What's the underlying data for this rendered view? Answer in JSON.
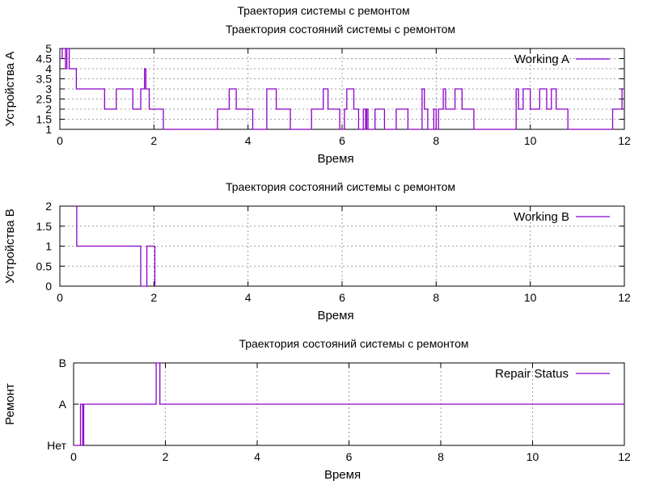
{
  "figure_title": "Траектория системы с ремонтом",
  "colors": {
    "series": "#8b00c9",
    "grid": "#a0a0a0",
    "axis": "#000000"
  },
  "chart_data": [
    {
      "type": "line",
      "title": "Траектория состояний системы с ремонтом",
      "xlabel": "Время",
      "ylabel": "Устройства А",
      "xlim": [
        0,
        12
      ],
      "ylim": [
        1,
        5
      ],
      "xticks": [
        0,
        2,
        4,
        6,
        8,
        10,
        12
      ],
      "xtick_labels": [
        "0",
        "2",
        "4",
        "6",
        "8",
        "10",
        "12"
      ],
      "yticks": [
        1,
        1.5,
        2,
        2.5,
        3,
        3.5,
        4,
        4.5,
        5
      ],
      "ytick_labels": [
        "1",
        "1.5",
        "2",
        "2.5",
        "3",
        "3.5",
        "4",
        "4.5",
        "5"
      ],
      "grid": true,
      "legend_position": "top-right",
      "series": [
        {
          "name": "Working A",
          "step": true,
          "x": [
            0,
            0.05,
            0.12,
            0.15,
            0.2,
            0.35,
            0.95,
            1.2,
            1.55,
            1.72,
            1.8,
            1.83,
            1.9,
            2.2,
            3.35,
            3.6,
            3.75,
            4.1,
            4.4,
            4.6,
            4.9,
            5.35,
            5.6,
            5.7,
            5.95,
            6.05,
            6.1,
            6.25,
            6.35,
            6.45,
            6.5,
            6.52,
            6.55,
            6.7,
            6.9,
            7.15,
            7.4,
            7.7,
            7.75,
            7.82,
            7.95,
            8.0,
            8.05,
            8.15,
            8.2,
            8.4,
            8.55,
            8.8,
            9.7,
            9.75,
            9.85,
            10.0,
            10.2,
            10.35,
            10.45,
            10.55,
            10.8,
            11.15,
            11.75,
            11.95,
            12
          ],
          "y": [
            4.5,
            5,
            4,
            5,
            4,
            3,
            2,
            3,
            2,
            3,
            4,
            3,
            2,
            1,
            2,
            3,
            2,
            1,
            3,
            2,
            1,
            2,
            3,
            2,
            1,
            2,
            3,
            2,
            1,
            2,
            1,
            2,
            1,
            2,
            1,
            2,
            1,
            3,
            2,
            1,
            2,
            1,
            2,
            3,
            2,
            3,
            2,
            1,
            3,
            2,
            3,
            2,
            3,
            2,
            3,
            2,
            1,
            1,
            2,
            3,
            3
          ]
        }
      ]
    },
    {
      "type": "line",
      "title": "Траектория состояний системы с ремонтом",
      "xlabel": "Время",
      "ylabel": "Устройства B",
      "xlim": [
        0,
        12
      ],
      "ylim": [
        0,
        2
      ],
      "xticks": [
        0,
        2,
        4,
        6,
        8,
        10,
        12
      ],
      "xtick_labels": [
        "0",
        "2",
        "4",
        "6",
        "8",
        "10",
        "12"
      ],
      "yticks": [
        0,
        0.5,
        1,
        1.5,
        2
      ],
      "ytick_labels": [
        "0",
        "0.5",
        "1",
        "1.5",
        "2"
      ],
      "grid": true,
      "legend_position": "top-right",
      "series": [
        {
          "name": "Working B",
          "step": true,
          "x": [
            0.35,
            0.36,
            1.72,
            1.85,
            2.02
          ],
          "y": [
            2,
            1,
            0,
            1,
            0
          ]
        }
      ]
    },
    {
      "type": "line",
      "title": "Траектория состояний системы с ремонтом",
      "xlabel": "Время",
      "ylabel": "Ремонт",
      "xlim": [
        0,
        12
      ],
      "ylim": [
        0,
        2
      ],
      "xticks": [
        0,
        2,
        4,
        6,
        8,
        10,
        12
      ],
      "xtick_labels": [
        "0",
        "2",
        "4",
        "6",
        "8",
        "10",
        "12"
      ],
      "yticks": [
        0,
        1,
        2
      ],
      "ytick_labels": [
        "Нет",
        "A",
        "B"
      ],
      "grid": true,
      "legend_position": "top-right",
      "series": [
        {
          "name": "Repair Status",
          "step": true,
          "x": [
            0,
            0.15,
            0.2,
            0.22,
            0.25,
            1.8,
            1.88,
            12
          ],
          "y": [
            0,
            1,
            0,
            1,
            1,
            2,
            1,
            1
          ]
        }
      ]
    }
  ]
}
